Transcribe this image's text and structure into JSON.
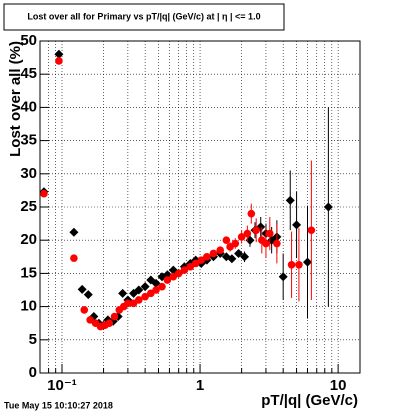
{
  "chart_data": {
    "type": "scatter",
    "title": "Lost over all for Primary vs pT/|q| (GeV/c) at | η | <= 1.0",
    "x_label": "pT/|q| (GeV/c)",
    "y_label": "Lost over all (%)",
    "footer": "Tue May 15 10:10:27 2018",
    "xlog": true,
    "grid": true,
    "xlim": [
      0.0693,
      14.4
    ],
    "ylim": [
      0,
      50
    ],
    "xticks": [
      {
        "value": 0.1,
        "label": "10⁻¹"
      },
      1,
      10
    ],
    "xminor": [
      0.08,
      0.09,
      0.2,
      0.3,
      0.4,
      0.5,
      0.6,
      0.7,
      0.8,
      0.9,
      2,
      3,
      4,
      5,
      6,
      7,
      8,
      9
    ],
    "yticks": [
      0,
      5,
      10,
      15,
      20,
      25,
      30,
      35,
      40,
      45,
      50
    ],
    "series": [
      {
        "color": "#000000",
        "marker": "diamond",
        "x": [
          0.074,
          0.095,
          0.122,
          0.14,
          0.155,
          0.17,
          0.185,
          0.2,
          0.215,
          0.235,
          0.255,
          0.275,
          0.3,
          0.33,
          0.36,
          0.4,
          0.44,
          0.48,
          0.53,
          0.58,
          0.64,
          0.7,
          0.77,
          0.85,
          0.93,
          1.02,
          1.12,
          1.25,
          1.4,
          1.55,
          1.7,
          1.9,
          2.1,
          2.3,
          2.5,
          2.75,
          3.0,
          3.3,
          3.6,
          4.0,
          4.5,
          5.0,
          6.0,
          8.5
        ],
        "values": [
          27.3,
          48,
          21.2,
          12.6,
          11.8,
          8.5,
          7.5,
          7.2,
          8,
          7.8,
          8.5,
          12,
          11,
          12,
          12.5,
          13,
          14,
          13.5,
          14.5,
          14.8,
          15.5,
          15,
          16,
          16.5,
          17,
          16.5,
          17,
          17.5,
          18,
          17.5,
          17.2,
          18,
          17.5,
          20,
          21.5,
          22,
          21,
          20,
          20.5,
          14.5,
          26,
          22.3,
          16.7,
          25
        ],
        "errors": [
          0.5,
          0.5,
          0.5,
          0.5,
          0.5,
          0.5,
          0.5,
          0.5,
          0.5,
          0.5,
          0.5,
          0.5,
          0.5,
          0.5,
          0.5,
          0.5,
          0.5,
          0.5,
          0.5,
          0.5,
          0.5,
          0.5,
          0.5,
          0.5,
          0.5,
          0.5,
          0.5,
          0.5,
          0.5,
          0.5,
          0.5,
          0.5,
          0.8,
          1,
          1.2,
          1.5,
          1.5,
          2,
          2.5,
          3.5,
          4.5,
          5,
          8.5,
          15
        ]
      },
      {
        "color": "#ff0000",
        "marker": "circle",
        "x": [
          0.074,
          0.095,
          0.122,
          0.145,
          0.16,
          0.175,
          0.19,
          0.205,
          0.22,
          0.24,
          0.26,
          0.28,
          0.3,
          0.33,
          0.36,
          0.4,
          0.44,
          0.48,
          0.53,
          0.58,
          0.64,
          0.7,
          0.77,
          0.85,
          0.93,
          1.02,
          1.12,
          1.25,
          1.4,
          1.55,
          1.65,
          1.8,
          2.0,
          2.2,
          2.35,
          2.55,
          2.8,
          3.0,
          3.2,
          3.6,
          4.6,
          5.2,
          6.4
        ],
        "values": [
          27,
          47,
          17.3,
          9.5,
          8,
          7.5,
          7,
          7.2,
          7.5,
          8.5,
          9.5,
          10,
          10.5,
          10.5,
          11,
          11.5,
          12,
          12.5,
          13,
          14,
          14.5,
          15,
          15.5,
          16,
          16.5,
          17,
          17.5,
          18,
          18.5,
          20,
          19,
          19.5,
          20.5,
          21,
          24,
          21.5,
          20,
          19.5,
          21,
          19.5,
          16.3,
          16.3,
          21.5
        ],
        "errors": [
          0.5,
          0.5,
          0.5,
          0.5,
          0.5,
          0.5,
          0.5,
          0.5,
          0.5,
          0.5,
          0.5,
          0.5,
          0.5,
          0.5,
          0.5,
          0.5,
          0.5,
          0.5,
          0.5,
          0.5,
          0.5,
          0.5,
          0.5,
          0.5,
          0.5,
          0.5,
          0.5,
          0.5,
          0.5,
          0.5,
          0.7,
          0.8,
          1,
          1.2,
          1.5,
          1.8,
          2,
          2.2,
          2.5,
          3,
          5,
          5.5,
          10.5
        ]
      }
    ]
  }
}
